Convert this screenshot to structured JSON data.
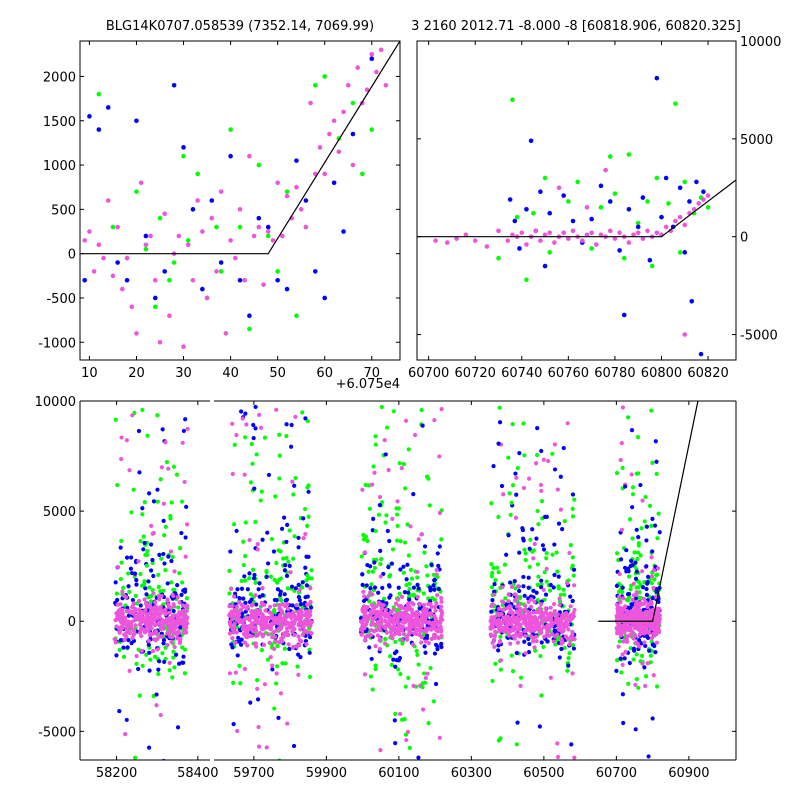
{
  "titles": {
    "left": "BLG14K0707.058539 (7352.14, 7069.99)",
    "right": "3 2160 2012.71 -8.000 -8 [60818.906, 60820.325]"
  },
  "colors": {
    "green": "#00ff00",
    "blue": "#0000ff",
    "magenta": "#ee55dd",
    "model": "#000000"
  },
  "chart_data": [
    {
      "id": "zoom",
      "type": "scatter",
      "title": "BLG14K0707.058539 (7352.14, 7069.99)",
      "x_offset_label": "+6.075e4",
      "xlim": [
        8,
        76
      ],
      "ylim": [
        -1200,
        2400
      ],
      "xticks": [
        10,
        20,
        30,
        40,
        50,
        60,
        70
      ],
      "yticks": [
        -1000,
        -500,
        0,
        500,
        1000,
        1500,
        2000
      ],
      "model": [
        [
          8,
          0
        ],
        [
          48,
          0
        ],
        [
          76,
          2400
        ]
      ],
      "series": [
        {
          "color": "green",
          "points": [
            [
              12,
              1800
            ],
            [
              15,
              300
            ],
            [
              18,
              -50
            ],
            [
              20,
              700
            ],
            [
              22,
              50
            ],
            [
              24,
              -600
            ],
            [
              25,
              400
            ],
            [
              27,
              -300
            ],
            [
              28,
              -100
            ],
            [
              30,
              1100
            ],
            [
              31,
              150
            ],
            [
              33,
              900
            ],
            [
              35,
              -500
            ],
            [
              37,
              300
            ],
            [
              38,
              -200
            ],
            [
              40,
              1400
            ],
            [
              42,
              300
            ],
            [
              44,
              -850
            ],
            [
              46,
              1000
            ],
            [
              48,
              200
            ],
            [
              50,
              -200
            ],
            [
              52,
              700
            ],
            [
              54,
              -700
            ],
            [
              56,
              300
            ],
            [
              58,
              1900
            ],
            [
              60,
              2000
            ],
            [
              63,
              1300
            ],
            [
              66,
              1700
            ],
            [
              68,
              900
            ],
            [
              70,
              1400
            ]
          ]
        },
        {
          "color": "blue",
          "points": [
            [
              9,
              -300
            ],
            [
              10,
              1550
            ],
            [
              12,
              1400
            ],
            [
              14,
              1650
            ],
            [
              16,
              -100
            ],
            [
              18,
              -300
            ],
            [
              20,
              1500
            ],
            [
              22,
              200
            ],
            [
              24,
              -500
            ],
            [
              26,
              -200
            ],
            [
              28,
              1900
            ],
            [
              30,
              1200
            ],
            [
              32,
              500
            ],
            [
              34,
              -400
            ],
            [
              36,
              600
            ],
            [
              38,
              -100
            ],
            [
              40,
              1100
            ],
            [
              42,
              -300
            ],
            [
              44,
              -700
            ],
            [
              46,
              400
            ],
            [
              48,
              300
            ],
            [
              50,
              -300
            ],
            [
              52,
              -400
            ],
            [
              54,
              1050
            ],
            [
              56,
              600
            ],
            [
              58,
              -200
            ],
            [
              60,
              -500
            ],
            [
              62,
              800
            ],
            [
              64,
              250
            ],
            [
              66,
              1350
            ],
            [
              70,
              2200
            ]
          ]
        },
        {
          "color": "magenta",
          "points": [
            [
              9,
              150
            ],
            [
              10,
              250
            ],
            [
              11,
              -200
            ],
            [
              12,
              100
            ],
            [
              13,
              -50
            ],
            [
              14,
              600
            ],
            [
              15,
              -250
            ],
            [
              16,
              300
            ],
            [
              17,
              -400
            ],
            [
              18,
              -50
            ],
            [
              19,
              -600
            ],
            [
              20,
              -900
            ],
            [
              21,
              800
            ],
            [
              22,
              100
            ],
            [
              23,
              200
            ],
            [
              24,
              -300
            ],
            [
              25,
              -1000
            ],
            [
              26,
              450
            ],
            [
              27,
              -700
            ],
            [
              28,
              0
            ],
            [
              29,
              200
            ],
            [
              30,
              -1050
            ],
            [
              31,
              100
            ],
            [
              32,
              -300
            ],
            [
              33,
              600
            ],
            [
              34,
              250
            ],
            [
              35,
              -500
            ],
            [
              36,
              400
            ],
            [
              37,
              -200
            ],
            [
              38,
              700
            ],
            [
              39,
              -900
            ],
            [
              40,
              150
            ],
            [
              41,
              -50
            ],
            [
              42,
              500
            ],
            [
              43,
              -300
            ],
            [
              44,
              1100
            ],
            [
              45,
              200
            ],
            [
              46,
              300
            ],
            [
              47,
              -350
            ],
            [
              48,
              250
            ],
            [
              49,
              150
            ],
            [
              50,
              800
            ],
            [
              51,
              200
            ],
            [
              52,
              650
            ],
            [
              53,
              400
            ],
            [
              54,
              750
            ],
            [
              55,
              500
            ],
            [
              56,
              300
            ],
            [
              57,
              1700
            ],
            [
              58,
              900
            ],
            [
              59,
              1200
            ],
            [
              60,
              900
            ],
            [
              61,
              1350
            ],
            [
              62,
              1500
            ],
            [
              63,
              1150
            ],
            [
              64,
              1600
            ],
            [
              65,
              1900
            ],
            [
              66,
              1000
            ],
            [
              67,
              2100
            ],
            [
              68,
              1700
            ],
            [
              69,
              1850
            ],
            [
              70,
              2250
            ],
            [
              71,
              2050
            ],
            [
              72,
              2300
            ],
            [
              73,
              1900
            ]
          ]
        }
      ]
    },
    {
      "id": "recent",
      "type": "scatter",
      "xlim": [
        60695,
        60832
      ],
      "ylim": [
        -6300,
        10000
      ],
      "xticks": [
        60700,
        60720,
        60740,
        60760,
        60780,
        60800,
        60820
      ],
      "yticks": [
        -5000,
        0,
        5000,
        10000
      ],
      "y_axis_side": "right",
      "model": [
        [
          60695,
          0
        ],
        [
          60800,
          0
        ],
        [
          60832,
          2900
        ]
      ],
      "series": [
        {
          "color": "green",
          "points": [
            [
              60730,
              -1100
            ],
            [
              60736,
              7000
            ],
            [
              60738,
              1000
            ],
            [
              60742,
              -2200
            ],
            [
              60745,
              1200
            ],
            [
              60750,
              3000
            ],
            [
              60752,
              -800
            ],
            [
              60760,
              1800
            ],
            [
              60764,
              2800
            ],
            [
              60770,
              -600
            ],
            [
              60774,
              1500
            ],
            [
              60778,
              4100
            ],
            [
              60780,
              2200
            ],
            [
              60784,
              -1100
            ],
            [
              60786,
              4200
            ],
            [
              60790,
              700
            ],
            [
              60794,
              1800
            ],
            [
              60796,
              -1500
            ],
            [
              60798,
              3000
            ],
            [
              60800,
              1000
            ],
            [
              60803,
              1700
            ],
            [
              60806,
              6800
            ],
            [
              60808,
              -800
            ],
            [
              60810,
              2800
            ],
            [
              60814,
              1200
            ],
            [
              60817,
              2000
            ],
            [
              60820,
              1500
            ]
          ]
        },
        {
          "color": "blue",
          "points": [
            [
              60735,
              1900
            ],
            [
              60737,
              800
            ],
            [
              60739,
              -600
            ],
            [
              60742,
              1400
            ],
            [
              60744,
              4900
            ],
            [
              60746,
              300
            ],
            [
              60748,
              2300
            ],
            [
              60750,
              -1500
            ],
            [
              60752,
              1200
            ],
            [
              60758,
              2100
            ],
            [
              60762,
              800
            ],
            [
              60766,
              -300
            ],
            [
              60770,
              900
            ],
            [
              60774,
              2600
            ],
            [
              60778,
              1800
            ],
            [
              60782,
              -700
            ],
            [
              60784,
              -4000
            ],
            [
              60786,
              1400
            ],
            [
              60790,
              500
            ],
            [
              60792,
              2000
            ],
            [
              60795,
              -1200
            ],
            [
              60798,
              8100
            ],
            [
              60800,
              1000
            ],
            [
              60802,
              3000
            ],
            [
              60805,
              500
            ],
            [
              60808,
              2500
            ],
            [
              60810,
              -800
            ],
            [
              60812,
              1800
            ],
            [
              60813,
              -3300
            ],
            [
              60815,
              2800
            ],
            [
              60817,
              -6000
            ],
            [
              60818,
              2300
            ]
          ]
        },
        {
          "color": "magenta",
          "points": [
            [
              60703,
              -200
            ],
            [
              60708,
              -300
            ],
            [
              60712,
              -100
            ],
            [
              60716,
              100
            ],
            [
              60720,
              -200
            ],
            [
              60725,
              -500
            ],
            [
              60730,
              300
            ],
            [
              60734,
              -200
            ],
            [
              60736,
              100
            ],
            [
              60738,
              0
            ],
            [
              60740,
              200
            ],
            [
              60742,
              -400
            ],
            [
              60744,
              0
            ],
            [
              60746,
              300
            ],
            [
              60748,
              -200
            ],
            [
              60750,
              100
            ],
            [
              60752,
              200
            ],
            [
              60754,
              -300
            ],
            [
              60756,
              0
            ],
            [
              60758,
              200
            ],
            [
              60760,
              -100
            ],
            [
              60762,
              300
            ],
            [
              60764,
              0
            ],
            [
              60766,
              -200
            ],
            [
              60768,
              100
            ],
            [
              60770,
              200
            ],
            [
              60772,
              -400
            ],
            [
              60774,
              100
            ],
            [
              60776,
              0
            ],
            [
              60778,
              300
            ],
            [
              60780,
              -100
            ],
            [
              60782,
              200
            ],
            [
              60784,
              0
            ],
            [
              60786,
              -300
            ],
            [
              60788,
              100
            ],
            [
              60790,
              200
            ],
            [
              60792,
              -100
            ],
            [
              60794,
              300
            ],
            [
              60796,
              0
            ],
            [
              60798,
              200
            ],
            [
              60800,
              100
            ],
            [
              60802,
              500
            ],
            [
              60804,
              300
            ],
            [
              60806,
              800
            ],
            [
              60808,
              1000
            ],
            [
              60810,
              600
            ],
            [
              60812,
              1200
            ],
            [
              60814,
              1400
            ],
            [
              60816,
              1700
            ],
            [
              60818,
              1900
            ],
            [
              60820,
              2100
            ],
            [
              60756,
              2500
            ],
            [
              60768,
              1500
            ],
            [
              60776,
              3400
            ],
            [
              60810,
              -5000
            ]
          ]
        }
      ]
    },
    {
      "id": "full",
      "type": "scatter",
      "xlim": [
        58110,
        61030
      ],
      "ylim": [
        -6300,
        10000
      ],
      "xticks": [
        58200,
        58400,
        59700,
        59900,
        60100,
        60300,
        60500,
        60700,
        60900
      ],
      "yticks": [
        -5000,
        0,
        5000,
        10000
      ],
      "axis_break_after": 58430,
      "model": [
        [
          60650,
          0
        ],
        [
          60800,
          0
        ],
        [
          60925,
          10000
        ]
      ],
      "seasons": [
        {
          "x": [
            58195,
            58375
          ],
          "yspread": [
            -1800,
            2500
          ],
          "outliers": 70
        },
        {
          "x": [
            59632,
            59860
          ],
          "yspread": [
            -1800,
            2800
          ],
          "outliers": 85
        },
        {
          "x": [
            59995,
            60220
          ],
          "yspread": [
            -1800,
            2700
          ],
          "outliers": 85
        },
        {
          "x": [
            60353,
            60585
          ],
          "yspread": [
            -1800,
            2500
          ],
          "outliers": 80
        },
        {
          "x": [
            60700,
            60820
          ],
          "yspread": [
            -1500,
            2200
          ],
          "outliers": 25
        }
      ]
    }
  ]
}
